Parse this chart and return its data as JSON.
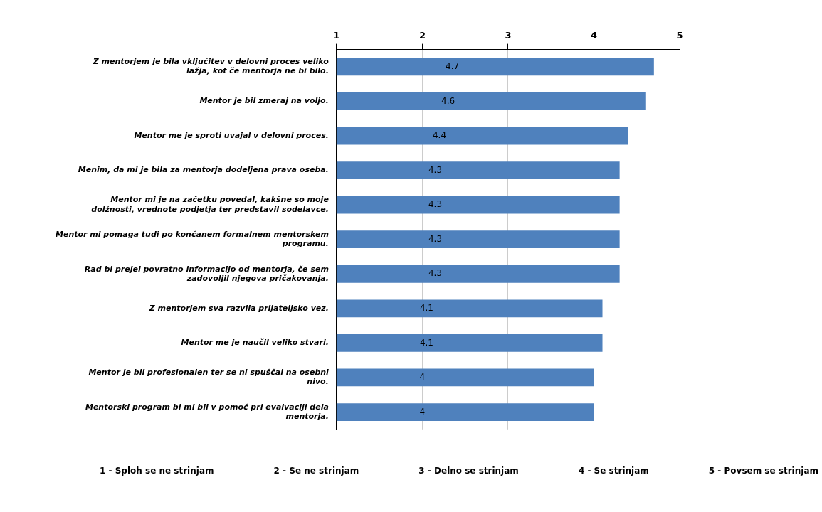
{
  "chart_data": {
    "type": "bar",
    "orientation": "horizontal",
    "categories": [
      "Z mentorjem je bila vključitev v delovni proces veliko lažja, kot če mentorja ne bi bilo.",
      "Mentor je bil zmeraj na voljo.",
      "Mentor me je sproti uvajal v delovni proces.",
      "Menim, da mi je bila za mentorja dodeljena prava oseba.",
      "Mentor mi je na začetku povedal, kakšne so moje dolžnosti, vrednote podjetja ter predstavil sodelavce.",
      "Mentor mi pomaga tudi po končanem formalnem mentorskem programu.",
      "Rad bi prejel povratno informacijo od mentorja, če sem zadovoljil njegova pričakovanja.",
      "Z mentorjem sva razvila prijateljsko vez.",
      "Mentor me je naučil veliko stvari.",
      "Mentor je bil profesionalen ter se ni spuščal na osebni nivo.",
      "Mentorski program bi mi bil v pomoč pri evalvaciji dela mentorja."
    ],
    "values": [
      4.7,
      4.6,
      4.4,
      4.3,
      4.3,
      4.3,
      4.3,
      4.1,
      4.1,
      4,
      4
    ],
    "color": "#4f81bd",
    "xlim": [
      1,
      5
    ],
    "xticks": [
      1,
      2,
      3,
      4,
      5
    ],
    "grid": "x",
    "data_labels": true,
    "legend": false,
    "annotations": [
      "1 - Sploh se ne strinjam",
      "2 - Se ne strinjam",
      "3 - Delno se strinjam",
      "4 - Se strinjam",
      "5 - Povsem se strinjam"
    ]
  }
}
